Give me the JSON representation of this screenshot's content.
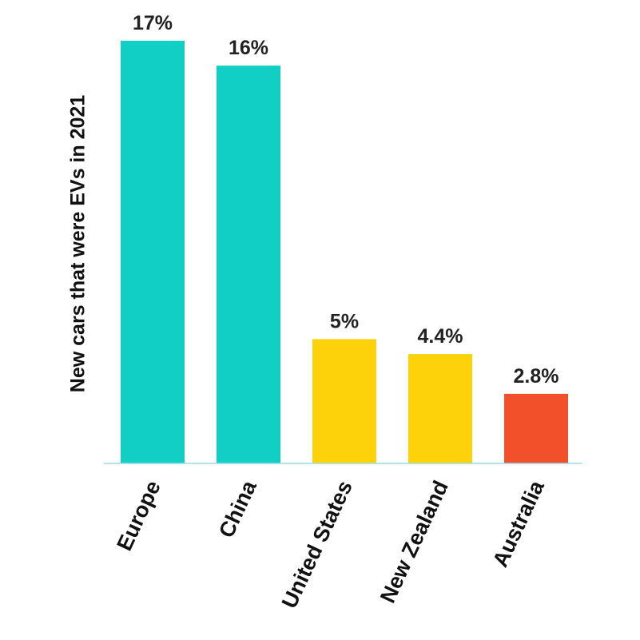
{
  "chart_data": {
    "type": "bar",
    "title": "",
    "xlabel": "",
    "ylabel": "New cars that were EVs in 2021",
    "categories": [
      "Europe",
      "China",
      "United States",
      "New Zealand",
      "Australia"
    ],
    "values": [
      17,
      16,
      5,
      4.4,
      2.8
    ],
    "value_labels": [
      "17%",
      "16%",
      "5%",
      "4.4%",
      "2.8%"
    ],
    "unit": "%",
    "ylim": [
      0,
      17
    ],
    "grid": false,
    "legend": "none",
    "bar_colors": [
      "#11cfc5",
      "#11cfc5",
      "#fdd20a",
      "#fdd20a",
      "#f2502a"
    ],
    "axis_color": "#9ed9e6"
  }
}
